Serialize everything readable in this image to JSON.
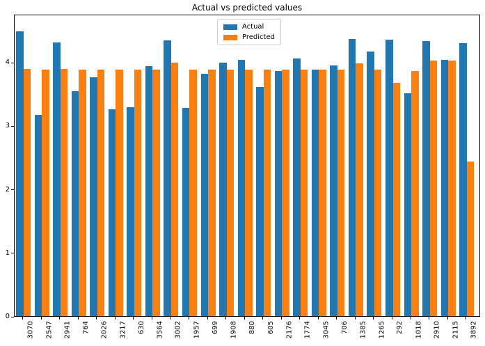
{
  "title": "Actual vs predicted values",
  "legend": [
    {
      "label": "Actual",
      "color": "#1f77b4"
    },
    {
      "label": "Predicted",
      "color": "#ff7f0e"
    }
  ],
  "colors": {
    "actual": "#1f77b4",
    "predicted": "#ff7f0e",
    "spine": "#000000",
    "legend_border": "#cccccc"
  },
  "chart_data": {
    "type": "bar",
    "title": "Actual vs predicted values",
    "xlabel": "",
    "ylabel": "",
    "categories": [
      "3070",
      "2547",
      "2941",
      "764",
      "2026",
      "3217",
      "630",
      "3564",
      "3002",
      "1957",
      "699",
      "1908",
      "880",
      "605",
      "2176",
      "1774",
      "3045",
      "706",
      "1385",
      "1265",
      "292",
      "1018",
      "2910",
      "2115",
      "3892"
    ],
    "series": [
      {
        "name": "Actual",
        "color": "#1f77b4",
        "values": [
          4.51,
          3.18,
          4.33,
          3.56,
          3.78,
          3.27,
          3.31,
          3.96,
          4.36,
          3.3,
          3.84,
          4.01,
          4.05,
          3.62,
          3.88,
          4.08,
          3.9,
          3.97,
          4.39,
          4.19,
          4.37,
          3.53,
          4.35,
          4.06,
          4.32
        ]
      },
      {
        "name": "Predicted",
        "color": "#ff7f0e",
        "values": [
          3.91,
          3.9,
          3.91,
          3.9,
          3.9,
          3.9,
          3.9,
          3.9,
          4.01,
          3.9,
          3.9,
          3.9,
          3.9,
          3.9,
          3.9,
          3.9,
          3.9,
          3.9,
          4.0,
          3.9,
          3.69,
          3.88,
          4.04,
          4.04,
          2.45
        ]
      }
    ],
    "yticks": [
      0,
      1,
      2,
      3,
      4
    ],
    "ylim": [
      0,
      4.76
    ],
    "grid": false,
    "legend_position": "upper center",
    "xtick_rotation": 90
  }
}
